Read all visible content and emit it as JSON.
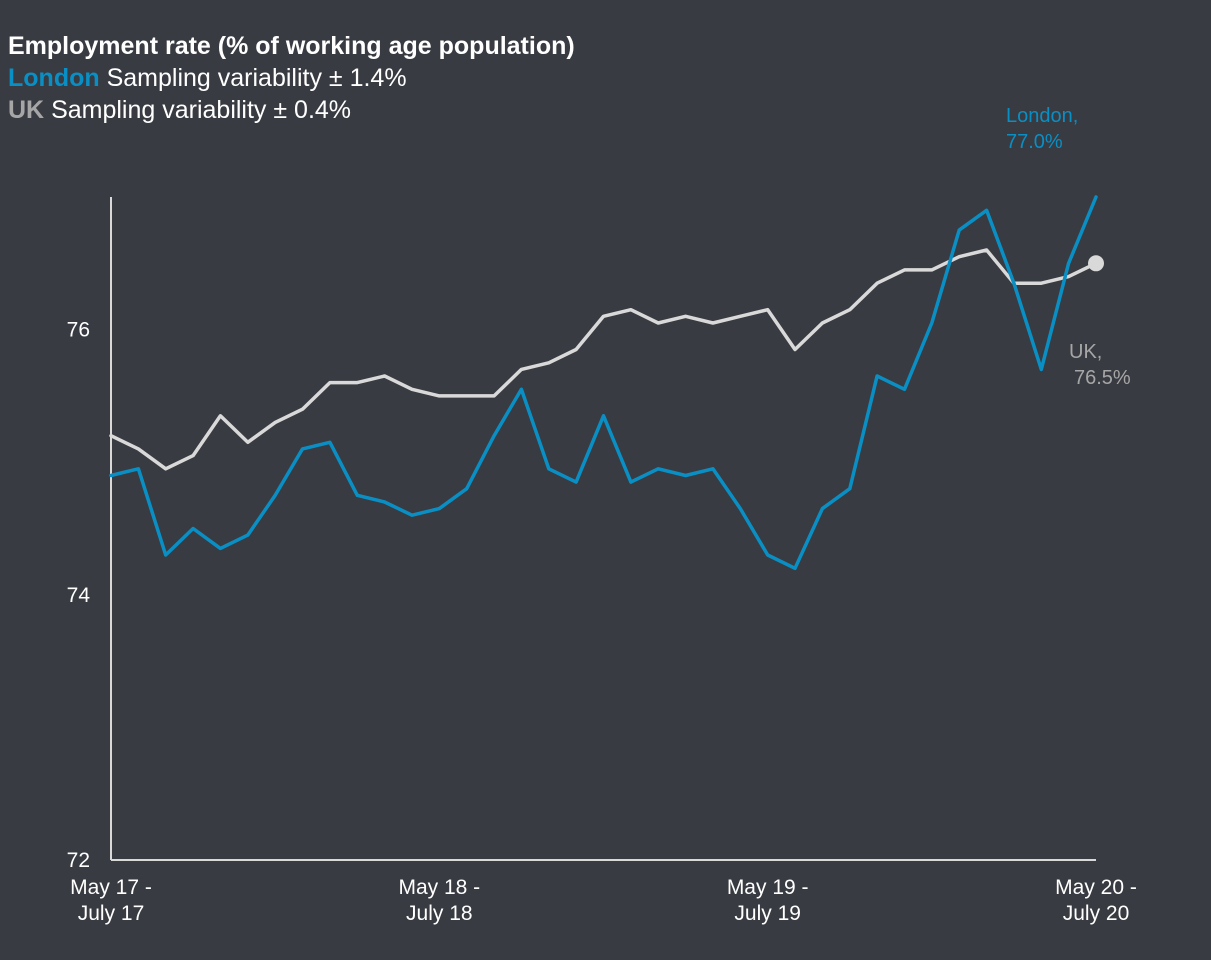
{
  "header": {
    "title": "Employment rate (% of working age population)",
    "line2_series": "London",
    "line2_text": "Sampling variability ± 1.4%",
    "line3_series": "UK",
    "line3_text": "Sampling variability ± 0.4%"
  },
  "colors": {
    "background": "#383b41",
    "london": "#0a8fc5",
    "uk": "#d9d9d9",
    "uk_label": "#a6a6a6",
    "axis": "#d9d9d9"
  },
  "chart_data": {
    "type": "line",
    "title": "Employment rate (% of working age population)",
    "ylim": [
      72,
      77
    ],
    "yticks": [
      72,
      74,
      76
    ],
    "x_tick_labels": [
      {
        "index": 0,
        "line1": "May 17 -",
        "line2": "July 17"
      },
      {
        "index": 12,
        "line1": "May 18 -",
        "line2": "July 18"
      },
      {
        "index": 24,
        "line1": "May 19 -",
        "line2": "July 19"
      },
      {
        "index": 36,
        "line1": "May 20 -",
        "line2": "July 20"
      }
    ],
    "grid": false,
    "series": [
      {
        "name": "London",
        "end_label_1": "London,",
        "end_label_2": "77.0%",
        "values": [
          74.9,
          74.95,
          74.3,
          74.5,
          74.35,
          74.45,
          74.75,
          75.1,
          75.15,
          74.75,
          74.7,
          74.6,
          74.65,
          74.8,
          75.2,
          75.55,
          74.95,
          74.85,
          75.35,
          74.85,
          74.95,
          74.9,
          74.95,
          74.65,
          74.3,
          74.2,
          74.65,
          74.8,
          75.65,
          75.55,
          76.05,
          76.75,
          76.9,
          76.35,
          75.7,
          76.5,
          77.0
        ]
      },
      {
        "name": "UK",
        "end_label_1": "UK,",
        "end_label_2": "76.5%",
        "values": [
          75.2,
          75.1,
          74.95,
          75.05,
          75.35,
          75.15,
          75.3,
          75.4,
          75.6,
          75.6,
          75.65,
          75.55,
          75.5,
          75.5,
          75.5,
          75.7,
          75.75,
          75.85,
          76.1,
          76.15,
          76.05,
          76.1,
          76.05,
          76.1,
          76.15,
          75.85,
          76.05,
          76.15,
          76.35,
          76.45,
          76.45,
          76.55,
          76.6,
          76.35,
          76.35,
          76.4,
          76.5
        ]
      }
    ]
  }
}
